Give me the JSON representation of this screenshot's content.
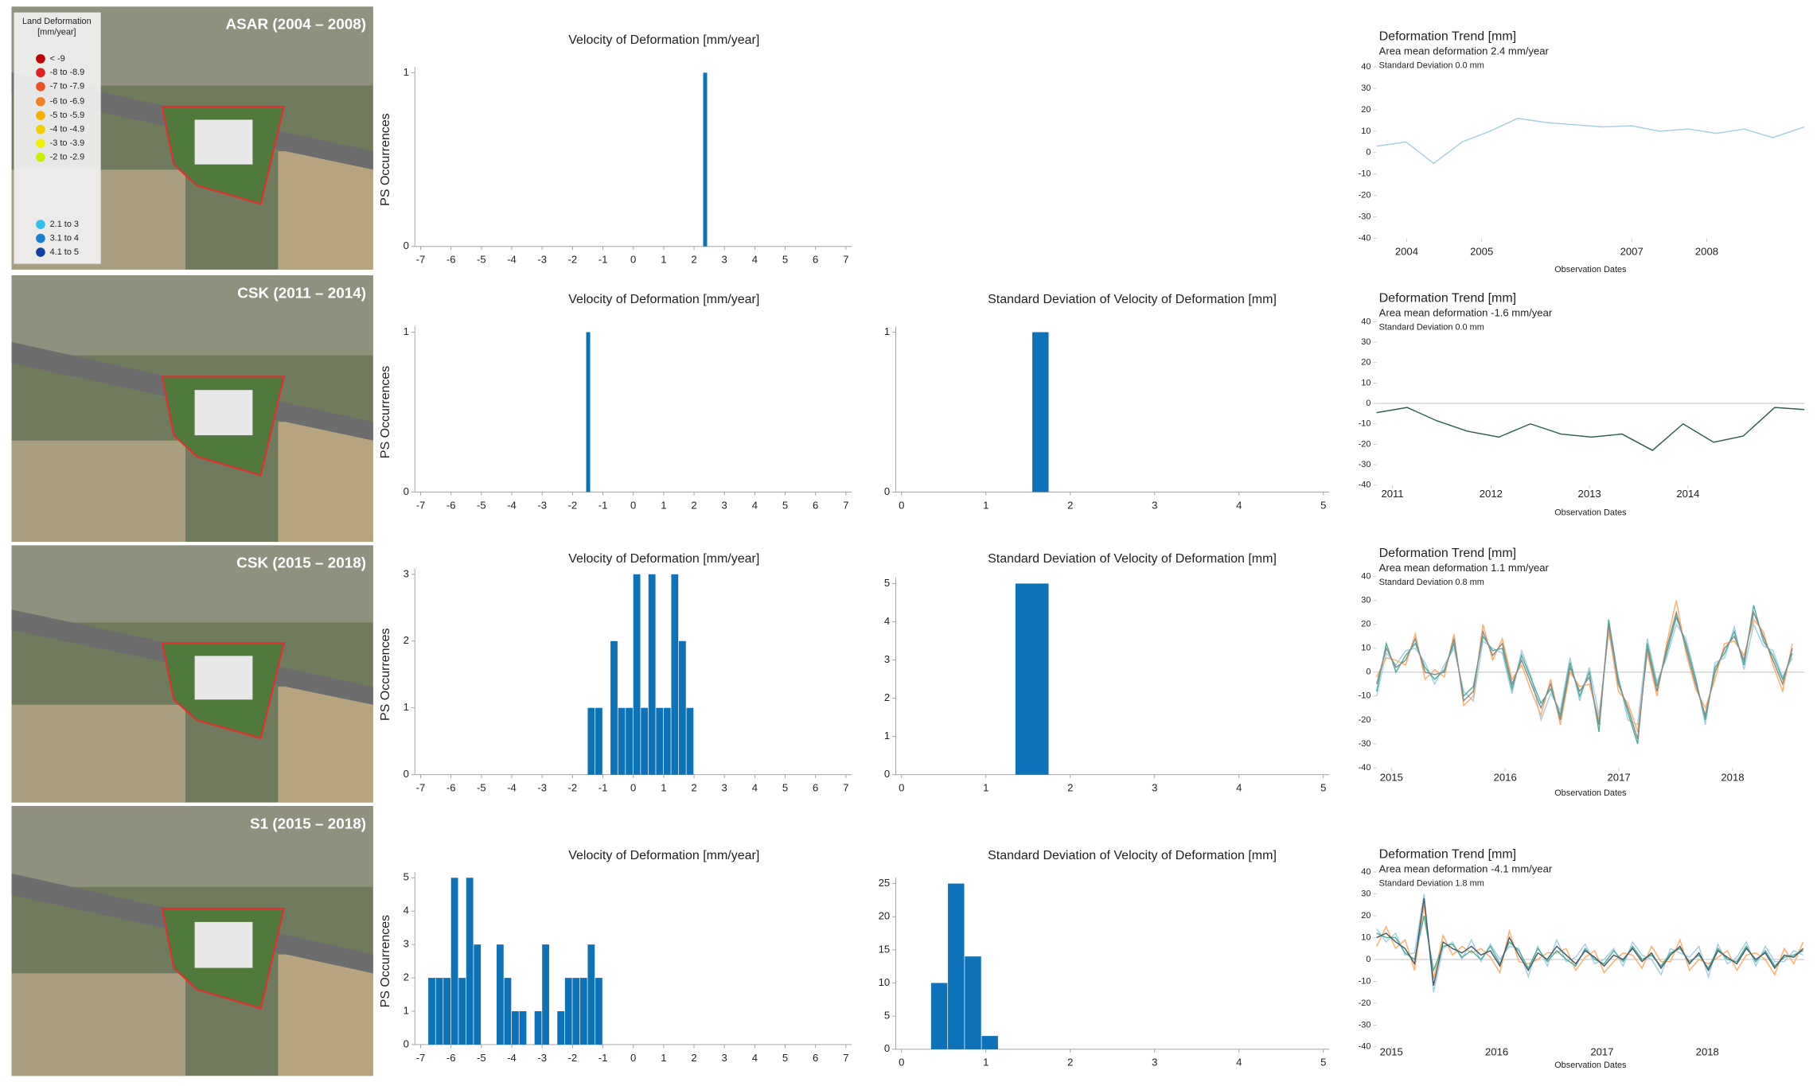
{
  "maps": [
    {
      "label": "ASAR (2004 – 2008)"
    },
    {
      "label": "CSK (2011 – 2014)"
    },
    {
      "label": "CSK (2015 – 2018)"
    },
    {
      "label": "S1 (2015 – 2018)"
    }
  ],
  "map_legend": {
    "title": [
      "Land Deformation",
      "[mm/year]"
    ],
    "items": [
      {
        "label": "< -9",
        "color": "#c00000"
      },
      {
        "label": "-8 to -8.9",
        "color": "#e02020"
      },
      {
        "label": "-7 to -7.9",
        "color": "#f05020"
      },
      {
        "label": "-6 to -6.9",
        "color": "#f08020"
      },
      {
        "label": "-5 to -5.9",
        "color": "#f5b000"
      },
      {
        "label": "-4 to -4.9",
        "color": "#f5d000"
      },
      {
        "label": "-3 to -3.9",
        "color": "#f0f000"
      },
      {
        "label": "-2 to -2.9",
        "color": "#c8f000"
      },
      {
        "label": "2.1 to 3",
        "color": "#30c0f0"
      },
      {
        "label": "3.1 to 4",
        "color": "#1a80d0"
      },
      {
        "label": "4.1 to 5",
        "color": "#1040a0"
      }
    ]
  },
  "chart_data": [
    {
      "type": "histogram",
      "title": "Velocity of Deformation [mm/year]",
      "y_label": "PS Occurrences",
      "bins": [
        2.3,
        2.45
      ],
      "counts": [
        1
      ],
      "color": "#0e72b8",
      "xlim": [
        -7,
        7
      ],
      "xticks": [
        -7,
        -6,
        -5,
        -4,
        -3,
        -2,
        -1,
        0,
        1,
        2,
        3,
        4,
        5,
        6,
        7
      ],
      "ylim": [
        0,
        1
      ],
      "yticks": [
        0,
        1
      ]
    },
    {
      "type": "line",
      "title": "Deformation Trend [mm]",
      "subtitle": "Area mean deformation 2.4 mm/year",
      "note": "Standard Deviation 0.0 mm",
      "x_label": "Observation Dates",
      "x": [
        2003.6,
        2003.99,
        2004.36,
        2004.74,
        2005.11,
        2005.48,
        2005.87,
        2006.24,
        2006.61,
        2007.0,
        2007.37,
        2007.76,
        2008.13,
        2008.5,
        2008.88,
        2009.3
      ],
      "series": [
        {
          "color": "#a6cee3",
          "values": [
            3,
            5,
            -5,
            5,
            10,
            16,
            14,
            13,
            12,
            12.5,
            10,
            11,
            9,
            11,
            7,
            12
          ]
        }
      ],
      "xlim": [
        2003.6,
        2009.3
      ],
      "xticks": [
        2004,
        2005,
        2007,
        2008
      ],
      "ylim": [
        -40,
        40
      ],
      "yticks": [
        -40,
        -30,
        -20,
        -10,
        0,
        10,
        20,
        30,
        40
      ],
      "zero_line": false
    },
    {
      "type": "histogram",
      "title": "Velocity of Deformation [mm/year]",
      "y_label": "PS Occurrences",
      "bins": [
        -1.55,
        -1.4
      ],
      "counts": [
        1
      ],
      "color": "#0e72b8",
      "xlim": [
        -7,
        7
      ],
      "xticks": [
        -7,
        -6,
        -5,
        -4,
        -3,
        -2,
        -1,
        0,
        1,
        2,
        3,
        4,
        5,
        6,
        7
      ],
      "ylim": [
        0,
        1
      ],
      "yticks": [
        0,
        1
      ]
    },
    {
      "type": "histogram",
      "title": "Standard Deviation of Velocity of Deformation [mm]",
      "bins": [
        1.55,
        1.75
      ],
      "counts": [
        1
      ],
      "color": "#0e72b8",
      "xlim": [
        0,
        5
      ],
      "xticks": [
        0,
        1,
        2,
        3,
        4,
        5
      ],
      "ylim": [
        0,
        1
      ],
      "yticks": [
        0,
        1
      ]
    },
    {
      "type": "line",
      "title": "Deformation Trend [mm]",
      "subtitle": "Area mean deformation -1.6 mm/year",
      "note": "Standard Deviation 0.0 mm",
      "x_label": "Observation Dates",
      "x": [
        2010.84,
        2011.15,
        2011.45,
        2011.76,
        2012.08,
        2012.4,
        2012.71,
        2013.02,
        2013.33,
        2013.64,
        2013.95,
        2014.26,
        2014.56,
        2014.88,
        2015.18
      ],
      "series": [
        {
          "color": "#2f5d50",
          "values": [
            -4.5,
            -2,
            -8.5,
            -13.6,
            -16.5,
            -10,
            -15,
            -16.5,
            -15,
            -23,
            -10,
            -19,
            -16,
            -2,
            -3
          ]
        }
      ],
      "xlim": [
        2010.84,
        2015.18
      ],
      "xticks": [
        2011,
        2012,
        2013,
        2014
      ],
      "ylim": [
        -40,
        40
      ],
      "yticks": [
        -40,
        -30,
        -20,
        -10,
        0,
        10,
        20,
        30,
        40
      ],
      "zero_line": true
    },
    {
      "type": "histogram",
      "title": "Velocity of Deformation [mm/year]",
      "y_label": "PS Occurrences",
      "bins": [
        -1.5,
        -1.25,
        -1,
        -0.75,
        -0.5,
        -0.25,
        0,
        0.25,
        0.5,
        0.75,
        1,
        1.25,
        1.5,
        1.75,
        2
      ],
      "counts": [
        1,
        1,
        0,
        2,
        1,
        1,
        3,
        1,
        3,
        1,
        1,
        3,
        2,
        1
      ],
      "color": "#0e72b8",
      "xlim": [
        -7,
        7
      ],
      "xticks": [
        -7,
        -6,
        -5,
        -4,
        -3,
        -2,
        -1,
        0,
        1,
        2,
        3,
        4,
        5,
        6,
        7
      ],
      "ylim": [
        0,
        3
      ],
      "yticks": [
        0,
        1,
        2,
        3
      ]
    },
    {
      "type": "histogram",
      "title": "Standard Deviation of Velocity of Deformation [mm]",
      "bins": [
        1.35,
        1.75
      ],
      "counts": [
        5
      ],
      "color": "#0e72b8",
      "xlim": [
        0,
        5
      ],
      "xticks": [
        0,
        1,
        2,
        3,
        4,
        5
      ],
      "ylim": [
        0,
        5
      ],
      "yticks": [
        0,
        1,
        2,
        3,
        4,
        5
      ]
    },
    {
      "type": "line",
      "title": "Deformation Trend [mm]",
      "subtitle": "Area mean deformation 1.1 mm/year",
      "note": "Standard Deviation 0.8 mm",
      "x_label": "Observation Dates",
      "x": [
        2014.87,
        2014.955,
        2015.04,
        2015.125,
        2015.21,
        2015.295,
        2015.38,
        2015.465,
        2015.55,
        2015.635,
        2015.72,
        2015.805,
        2015.89,
        2015.975,
        2016.06,
        2016.145,
        2016.23,
        2016.315,
        2016.4,
        2016.485,
        2016.57,
        2016.655,
        2016.74,
        2016.825,
        2016.91,
        2016.995,
        2017.08,
        2017.165,
        2017.25,
        2017.335,
        2017.42,
        2017.505,
        2017.59,
        2017.675,
        2017.76,
        2017.845,
        2017.93,
        2018.015,
        2018.1,
        2018.185,
        2018.27,
        2018.355,
        2018.44,
        2018.525
      ],
      "series": [
        {
          "color": "#a6cee3",
          "values": [
            -10,
            8,
            3,
            9,
            10,
            4,
            -5,
            3,
            10,
            -8,
            -12,
            13,
            10,
            8,
            -9,
            9,
            -2,
            -20,
            -9,
            -16,
            6,
            -12,
            2,
            -18,
            16,
            -2,
            -20,
            -22,
            14,
            -4,
            6,
            20,
            14,
            -2,
            -22,
            4,
            6,
            19,
            1,
            20,
            11,
            9,
            -2,
            6
          ]
        },
        {
          "color": "#fdae6b",
          "values": [
            -2,
            6,
            5,
            3,
            16,
            -3,
            1,
            -2,
            16,
            -14,
            -10,
            20,
            5,
            14,
            -3,
            3,
            -8,
            -18,
            -3,
            -22,
            0,
            -6,
            -5,
            -20,
            18,
            -8,
            -13,
            -25,
            8,
            -10,
            12,
            30,
            8,
            -7,
            -15,
            -3,
            12,
            13,
            7,
            22,
            17,
            3,
            -8,
            12
          ]
        },
        {
          "color": "#4daf9a",
          "values": [
            -8,
            12,
            0,
            7,
            12,
            2,
            -3,
            1,
            12,
            -10,
            -6,
            15,
            9,
            10,
            -7,
            7,
            -3,
            -13,
            -7,
            -18,
            4,
            -10,
            0,
            -25,
            22,
            -3,
            -17,
            -30,
            12,
            -6,
            8,
            23,
            12,
            -3,
            -20,
            2,
            8,
            17,
            3,
            28,
            13,
            7,
            -3,
            8
          ]
        },
        {
          "color": "#8a8a8a",
          "values": [
            -5,
            10,
            2,
            5,
            14,
            0,
            -1,
            0,
            14,
            -12,
            -8,
            17,
            7,
            12,
            -5,
            5,
            -5,
            -15,
            -5,
            -20,
            2,
            -8,
            -2,
            -22,
            20,
            -5,
            -15,
            -28,
            10,
            -8,
            10,
            25,
            10,
            -5,
            -18,
            0,
            10,
            15,
            5,
            25,
            15,
            5,
            -5,
            10
          ]
        }
      ],
      "xlim": [
        2014.87,
        2018.63
      ],
      "xticks": [
        2015,
        2016,
        2017,
        2018
      ],
      "ylim": [
        -40,
        40
      ],
      "yticks": [
        -40,
        -30,
        -20,
        -10,
        0,
        10,
        20,
        30,
        40
      ],
      "zero_line": true
    },
    {
      "type": "histogram",
      "title": "Velocity of Deformation [mm/year]",
      "y_label": "PS Occurrences",
      "bins": [
        -6.75,
        -6.5,
        -6.25,
        -6,
        -5.75,
        -5.5,
        -5.25,
        -5,
        -4.75,
        -4.5,
        -4.25,
        -4,
        -3.75,
        -3.5,
        -3.25,
        -3,
        -2.75,
        -2.5,
        -2.25,
        -2,
        -1.75,
        -1.5,
        -1.25,
        -1
      ],
      "counts": [
        2,
        2,
        2,
        5,
        2,
        5,
        3,
        0,
        0,
        3,
        2,
        1,
        1,
        0,
        1,
        3,
        0,
        1,
        2,
        2,
        2,
        3,
        2
      ],
      "color": "#0e72b8",
      "xlim": [
        -7,
        7
      ],
      "xticks": [
        -7,
        -6,
        -5,
        -4,
        -3,
        -2,
        -1,
        0,
        1,
        2,
        3,
        4,
        5,
        6,
        7
      ],
      "ylim": [
        0,
        5
      ],
      "yticks": [
        0,
        1,
        2,
        3,
        4,
        5
      ]
    },
    {
      "type": "histogram",
      "title": "Standard Deviation of Velocity of Deformation [mm]",
      "bins": [
        0.35,
        0.55,
        0.75,
        0.95,
        1.15
      ],
      "counts": [
        10,
        25,
        14,
        2
      ],
      "color": "#0e72b8",
      "xlim": [
        0,
        5
      ],
      "xticks": [
        0,
        1,
        2,
        3,
        4,
        5
      ],
      "ylim": [
        0,
        25
      ],
      "yticks": [
        0,
        5,
        10,
        15,
        20,
        25
      ]
    },
    {
      "type": "line",
      "title": "Deformation Trend [mm]",
      "subtitle": "Area mean deformation -4.1 mm/year",
      "note": "Standard Deviation 1.8 mm",
      "x_label": "Observation Dates",
      "x": [
        2014.86,
        2014.95,
        2015.04,
        2015.13,
        2015.22,
        2015.31,
        2015.4,
        2015.49,
        2015.58,
        2015.67,
        2015.76,
        2015.85,
        2015.94,
        2016.03,
        2016.12,
        2016.21,
        2016.3,
        2016.39,
        2016.48,
        2016.57,
        2016.66,
        2016.75,
        2016.84,
        2016.93,
        2017.02,
        2017.11,
        2017.2,
        2017.29,
        2017.38,
        2017.47,
        2017.56,
        2017.65,
        2017.74,
        2017.83,
        2017.92,
        2018.01,
        2018.1,
        2018.19,
        2018.28,
        2018.37,
        2018.46,
        2018.55,
        2018.64,
        2018.73,
        2018.82,
        2018.91
      ],
      "series": [
        {
          "color": "#fdae6b",
          "values": [
            6,
            15,
            5,
            9,
            -5,
            25,
            -9,
            11,
            2,
            6,
            3,
            5,
            1,
            -6,
            13,
            -1,
            -2,
            0,
            3,
            3,
            5,
            -5,
            1,
            4,
            -6,
            -1,
            3,
            2,
            -4,
            6,
            -1,
            -1,
            9,
            -5,
            0,
            -2,
            1,
            4,
            -5,
            2,
            3,
            0,
            -7,
            5,
            -2,
            8
          ]
        },
        {
          "color": "#a6cee3",
          "values": [
            14,
            8,
            12,
            2,
            3,
            30,
            -15,
            5,
            8,
            0,
            9,
            -1,
            7,
            0,
            6,
            5,
            -8,
            6,
            -3,
            9,
            -1,
            1,
            7,
            -2,
            0,
            5,
            -3,
            8,
            2,
            0,
            -7,
            5,
            3,
            1,
            6,
            -8,
            7,
            -2,
            1,
            8,
            -3,
            6,
            -1,
            -1,
            4,
            2
          ]
        },
        {
          "color": "#4daf9a",
          "values": [
            12,
            10,
            10,
            3,
            0,
            20,
            -5,
            6,
            7,
            1,
            4,
            0,
            6,
            -2,
            8,
            4,
            -4,
            5,
            -1,
            4,
            0,
            -3,
            5,
            0,
            -2,
            4,
            -1,
            6,
            0,
            2,
            -3,
            3,
            5,
            -1,
            2,
            -4,
            5,
            0,
            -1,
            6,
            -1,
            4,
            -3,
            1,
            2,
            4
          ]
        },
        {
          "color": "#4a5a6a",
          "values": [
            10,
            12,
            8,
            5,
            -2,
            28,
            -12,
            8,
            5,
            3,
            6,
            2,
            4,
            -3,
            10,
            2,
            -5,
            3,
            0,
            6,
            2,
            -2,
            4,
            1,
            -3,
            2,
            0,
            5,
            -1,
            3,
            -4,
            2,
            6,
            -2,
            3,
            -5,
            4,
            1,
            -2,
            5,
            0,
            3,
            -4,
            2,
            1,
            5
          ]
        }
      ],
      "xlim": [
        2014.86,
        2018.92
      ],
      "xticks": [
        2015,
        2016,
        2017,
        2018
      ],
      "ylim": [
        -40,
        40
      ],
      "yticks": [
        -40,
        -30,
        -20,
        -10,
        0,
        10,
        20,
        30,
        40
      ],
      "zero_line": true
    }
  ]
}
